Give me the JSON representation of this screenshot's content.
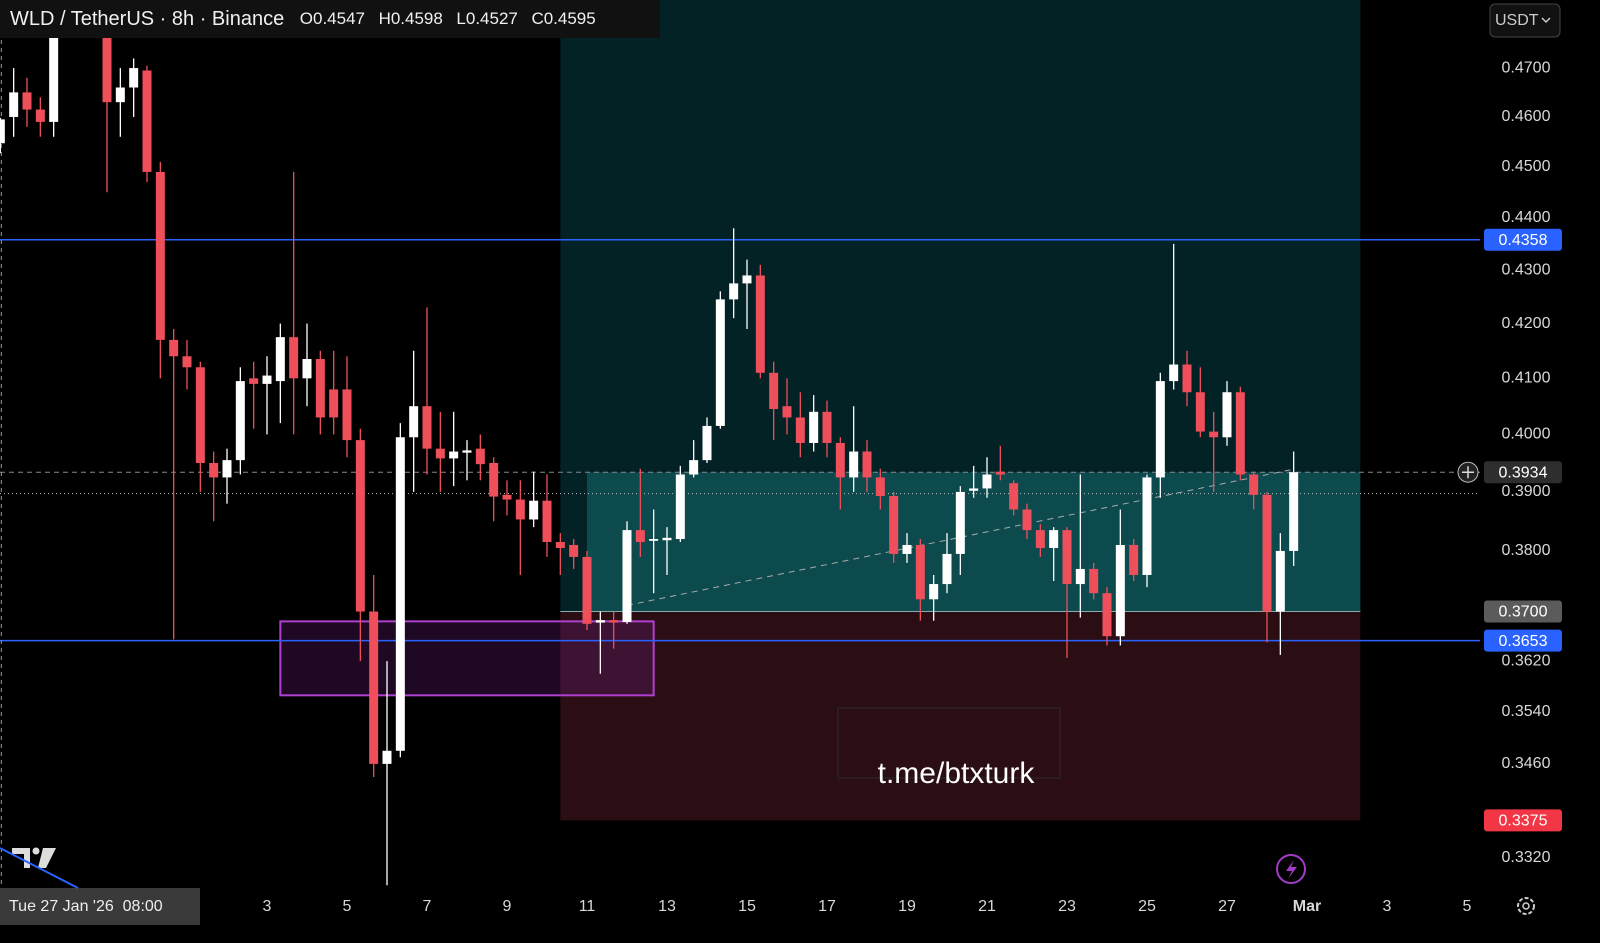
{
  "chart_data": {
    "type": "candlestick",
    "title": "WLD / TetherUS · 8h · Binance",
    "ohlc_labels": [
      "O",
      "H",
      "L",
      "C"
    ],
    "currency": "USDT",
    "watermark": "t.me/btxturk",
    "crosshair_label": "Tue 27 Jan '26  08:00",
    "log": true,
    "up_color": "#ffffff",
    "down_color": "#ef4f5a",
    "level_color": "#2962ff",
    "x": [
      -112,
      -104,
      -96,
      -88,
      -80,
      -48,
      -40,
      -32,
      -24,
      -16,
      -8,
      0,
      8,
      16,
      24,
      32,
      40,
      48,
      56,
      64,
      72,
      80,
      88,
      96,
      104,
      112,
      120,
      128,
      136,
      144,
      152,
      160,
      168,
      176,
      184,
      192,
      200,
      208,
      216,
      224,
      232,
      240,
      248,
      256,
      264,
      272,
      280,
      288,
      296,
      304,
      312,
      320,
      328,
      336,
      344,
      352,
      360,
      368,
      376,
      384,
      392,
      400,
      408,
      416,
      424,
      432,
      440,
      448,
      456,
      464,
      472,
      480,
      488,
      496,
      504,
      512,
      520,
      528,
      536,
      544,
      552,
      560,
      568,
      576,
      584,
      592,
      600,
      608,
      616,
      624,
      632,
      640,
      648,
      656,
      664
    ],
    "open": [
      0.4547,
      0.46,
      0.465,
      0.4615,
      0.459,
      0.4843,
      0.463,
      0.466,
      0.4695,
      0.449,
      0.417,
      0.414,
      0.412,
      0.395,
      0.3925,
      0.3955,
      0.41,
      0.409,
      0.4095,
      0.4175,
      0.41,
      0.4135,
      0.408,
      0.408,
      0.399,
      0.37,
      0.346,
      0.348,
      0.3995,
      0.405,
      0.3975,
      0.3958,
      0.3968,
      0.3975,
      0.395,
      0.3895,
      0.3887,
      0.3853,
      0.3885,
      0.3815,
      0.381,
      0.379,
      0.3682,
      0.3686,
      0.3683,
      0.3835,
      0.3817,
      0.3818,
      0.382,
      0.393,
      0.3955,
      0.4015,
      0.4245,
      0.4275,
      0.429,
      0.411,
      0.405,
      0.403,
      0.3985,
      0.404,
      0.3985,
      0.3925,
      0.397,
      0.3925,
      0.3893,
      0.3795,
      0.381,
      0.372,
      0.3745,
      0.3795,
      0.3902,
      0.3906,
      0.3935,
      0.3915,
      0.387,
      0.3835,
      0.3805,
      0.3835,
      0.3745,
      0.377,
      0.373,
      0.366,
      0.381,
      0.376,
      0.3925,
      0.4095,
      0.4125,
      0.4075,
      0.4005,
      0.3995,
      0.4075,
      0.393,
      0.3895,
      0.37,
      0.38
    ],
    "high": [
      0.4598,
      0.47,
      0.468,
      0.464,
      0.4843,
      0.4843,
      0.47,
      0.472,
      0.4705,
      0.451,
      0.419,
      0.417,
      0.413,
      0.397,
      0.3975,
      0.412,
      0.413,
      0.414,
      0.42,
      0.449,
      0.42,
      0.415,
      0.415,
      0.414,
      0.401,
      0.376,
      0.362,
      0.402,
      0.415,
      0.423,
      0.404,
      0.404,
      0.399,
      0.4,
      0.396,
      0.392,
      0.392,
      0.3935,
      0.393,
      0.383,
      0.382,
      0.38,
      0.37,
      0.37,
      0.385,
      0.394,
      0.387,
      0.384,
      0.3945,
      0.399,
      0.403,
      0.426,
      0.438,
      0.432,
      0.431,
      0.413,
      0.41,
      0.4075,
      0.407,
      0.406,
      0.3995,
      0.405,
      0.399,
      0.394,
      0.39,
      0.383,
      0.382,
      0.376,
      0.383,
      0.391,
      0.3945,
      0.396,
      0.398,
      0.392,
      0.388,
      0.3845,
      0.384,
      0.384,
      0.393,
      0.378,
      0.374,
      0.387,
      0.382,
      0.393,
      0.411,
      0.435,
      0.415,
      0.412,
      0.404,
      0.4095,
      0.4085,
      0.3935,
      0.39,
      0.383,
      0.397
    ],
    "low": [
      0.4527,
      0.456,
      0.458,
      0.456,
      0.456,
      0.445,
      0.456,
      0.46,
      0.447,
      0.41,
      0.3655,
      0.408,
      0.39,
      0.385,
      0.388,
      0.393,
      0.401,
      0.4,
      0.402,
      0.4,
      0.405,
      0.4,
      0.4,
      0.396,
      0.362,
      0.344,
      0.328,
      0.347,
      0.39,
      0.393,
      0.39,
      0.391,
      0.392,
      0.392,
      0.385,
      0.386,
      0.376,
      0.384,
      0.379,
      0.376,
      0.377,
      0.367,
      0.36,
      0.364,
      0.368,
      0.379,
      0.373,
      0.376,
      0.3815,
      0.3925,
      0.395,
      0.401,
      0.421,
      0.419,
      0.41,
      0.399,
      0.4,
      0.396,
      0.397,
      0.396,
      0.387,
      0.39,
      0.39,
      0.387,
      0.378,
      0.378,
      0.3685,
      0.3685,
      0.373,
      0.376,
      0.389,
      0.389,
      0.392,
      0.386,
      0.382,
      0.379,
      0.375,
      0.3625,
      0.369,
      0.372,
      0.3645,
      0.3645,
      0.375,
      0.374,
      0.389,
      0.408,
      0.405,
      0.3995,
      0.39,
      0.398,
      0.392,
      0.387,
      0.365,
      0.363,
      0.3775
    ],
    "close": [
      0.4595,
      0.465,
      0.4615,
      0.459,
      0.482,
      0.463,
      0.466,
      0.47,
      0.449,
      0.417,
      0.414,
      0.412,
      0.395,
      0.3925,
      0.3955,
      0.4095,
      0.409,
      0.4105,
      0.4175,
      0.41,
      0.4135,
      0.403,
      0.403,
      0.399,
      0.37,
      0.346,
      0.348,
      0.3995,
      0.405,
      0.3975,
      0.3958,
      0.397,
      0.3972,
      0.3948,
      0.3892,
      0.3887,
      0.3853,
      0.3885,
      0.3815,
      0.3805,
      0.379,
      0.368,
      0.3686,
      0.3682,
      0.3835,
      0.3815,
      0.382,
      0.3822,
      0.393,
      0.3955,
      0.4015,
      0.4245,
      0.4275,
      0.429,
      0.411,
      0.4045,
      0.403,
      0.3985,
      0.404,
      0.3985,
      0.3925,
      0.397,
      0.3925,
      0.3893,
      0.3795,
      0.381,
      0.372,
      0.3745,
      0.3795,
      0.39,
      0.3906,
      0.393,
      0.393,
      0.387,
      0.3835,
      0.3805,
      0.3835,
      0.3745,
      0.377,
      0.373,
      0.366,
      0.381,
      0.376,
      0.3925,
      0.4095,
      0.4125,
      0.4075,
      0.4005,
      0.3995,
      0.4075,
      0.393,
      0.3895,
      0.37,
      0.38,
      0.3934
    ],
    "xlim": [
      -112.2,
      775.8
    ],
    "ylim": [
      0.3276,
      0.4843
    ],
    "yticks": [
      {
        "value": 0.47,
        "label": "0.4700"
      },
      {
        "value": 0.46,
        "label": "0.4600"
      },
      {
        "value": 0.45,
        "label": "0.4500"
      },
      {
        "value": 0.44,
        "label": "0.4400"
      },
      {
        "value": 0.43,
        "label": "0.4300"
      },
      {
        "value": 0.42,
        "label": "0.4200"
      },
      {
        "value": 0.41,
        "label": "0.4100"
      },
      {
        "value": 0.4,
        "label": "0.4000"
      },
      {
        "value": 0.39,
        "label": "0.3900"
      },
      {
        "value": 0.38,
        "label": "0.3800"
      },
      {
        "value": 0.362,
        "label": "0.3620"
      },
      {
        "value": 0.354,
        "label": "0.3540"
      },
      {
        "value": 0.346,
        "label": "0.3460"
      },
      {
        "value": 0.332,
        "label": "0.3320"
      }
    ],
    "xticks": [
      {
        "value": 48,
        "label": "3"
      },
      {
        "value": 96,
        "label": "5"
      },
      {
        "value": 144,
        "label": "7"
      },
      {
        "value": 192,
        "label": "9"
      },
      {
        "value": 240,
        "label": "11"
      },
      {
        "value": 288,
        "label": "13"
      },
      {
        "value": 336,
        "label": "15"
      },
      {
        "value": 384,
        "label": "17"
      },
      {
        "value": 432,
        "label": "19"
      },
      {
        "value": 480,
        "label": "21"
      },
      {
        "value": 528,
        "label": "23"
      },
      {
        "value": 576,
        "label": "25"
      },
      {
        "value": 624,
        "label": "27"
      },
      {
        "value": 672,
        "label": "Mar"
      },
      {
        "value": 720,
        "label": "3"
      },
      {
        "value": 768,
        "label": "5"
      }
    ],
    "badges": [
      {
        "value": 0.4358,
        "label": "0.4358"
      },
      {
        "value": 0.3934,
        "label": "0.3934"
      },
      {
        "value": 0.37,
        "label": "0.3700"
      },
      {
        "value": 0.3653,
        "label": "0.3653"
      },
      {
        "value": 0.3375,
        "label": "0.3375"
      }
    ],
    "badge_colors": [
      "#2962ff",
      "#2e2e2e",
      "#5b5b5b",
      "#2962ff",
      "#f23645"
    ],
    "levels": [
      0.4358,
      0.3653
    ],
    "current_price": 0.3934,
    "crosshair_price": 0.3897,
    "trendline": {
      "x": [
        264,
        662
      ],
      "y": [
        0.371,
        0.3938
      ]
    },
    "zone": {
      "x": [
        56,
        280
      ],
      "y": [
        0.3566,
        0.3684
      ]
    },
    "position": {
      "x": [
        224,
        704
      ],
      "entry": 0.37,
      "stop": 0.3375,
      "fill_from": 240
    }
  }
}
